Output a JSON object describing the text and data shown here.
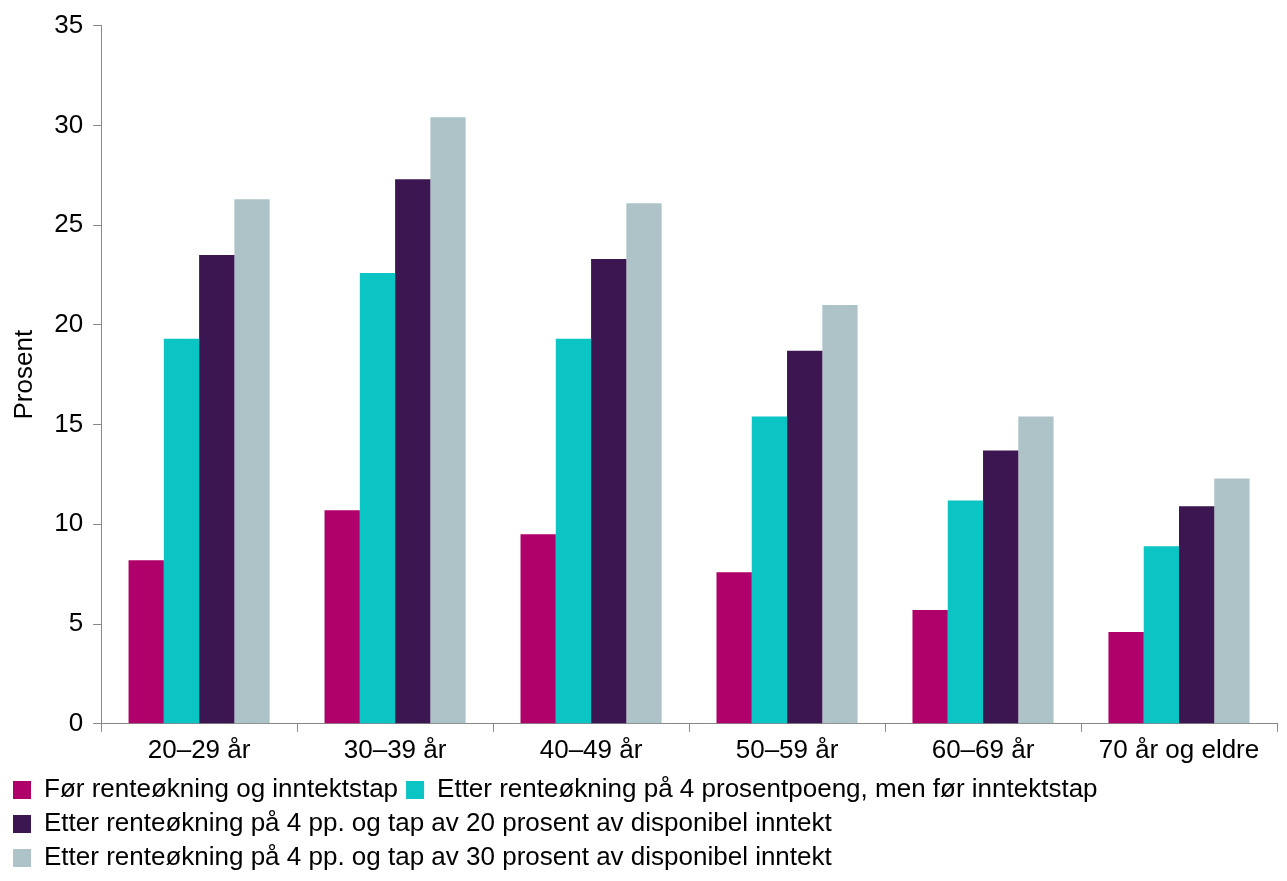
{
  "chart_data": {
    "type": "bar",
    "ylabel": "Prosent",
    "categories": [
      "20–29 år",
      "30–39 år",
      "40–49 år",
      "50–59 år",
      "60–69 år",
      "70 år og eldre"
    ],
    "series": [
      {
        "name": "Før renteøkning og inntektstap",
        "color": "#b0006a",
        "values": [
          8.2,
          10.7,
          9.5,
          7.6,
          5.7,
          4.6
        ]
      },
      {
        "name": "Etter renteøkning på 4 prosentpoeng, men før inntektstap",
        "color": "#0bc4c4",
        "values": [
          19.3,
          22.6,
          19.3,
          15.4,
          11.2,
          8.9
        ]
      },
      {
        "name": "Etter renteøkning på 4 pp. og tap av 20 prosent av disponibel inntekt",
        "color": "#3b1650",
        "values": [
          23.5,
          27.3,
          23.3,
          18.7,
          13.7,
          10.9
        ]
      },
      {
        "name": "Etter renteøkning på 4 pp. og tap av 30 prosent av disponibel inntekt",
        "color": "#adc3c8",
        "values": [
          26.3,
          30.4,
          26.1,
          21.0,
          15.4,
          12.3
        ]
      }
    ],
    "ylim": [
      0,
      35
    ],
    "yticks": [
      0,
      5,
      10,
      15,
      20,
      25,
      30,
      35
    ],
    "grid": false,
    "legend": "bottom"
  }
}
